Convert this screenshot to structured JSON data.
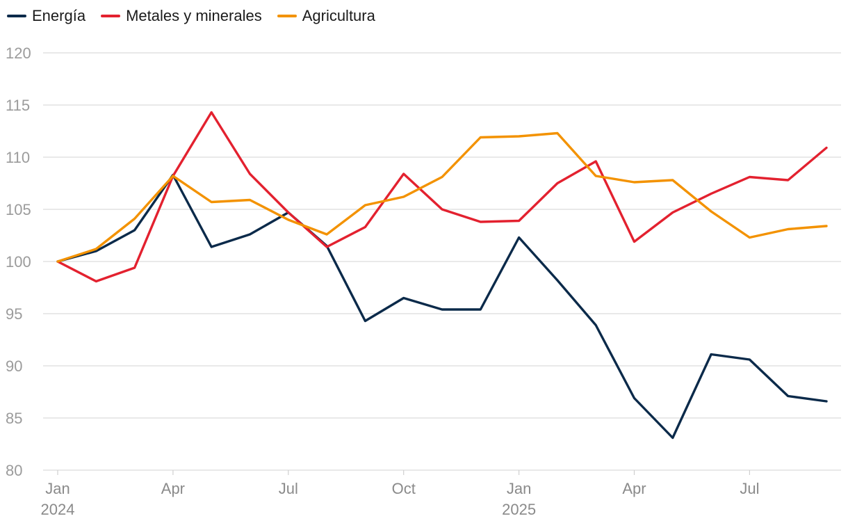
{
  "chart_data": {
    "type": "line",
    "title": "",
    "xlabel": "",
    "ylabel": "",
    "ylim": [
      80,
      120
    ],
    "yticks": [
      80,
      85,
      90,
      95,
      100,
      105,
      110,
      115,
      120
    ],
    "x": [
      "2024-01",
      "2024-02",
      "2024-03",
      "2024-04",
      "2024-05",
      "2024-06",
      "2024-07",
      "2024-08",
      "2024-09",
      "2024-10",
      "2024-11",
      "2024-12",
      "2025-01",
      "2025-02",
      "2025-03",
      "2025-04",
      "2025-05",
      "2025-06",
      "2025-07",
      "2025-08",
      "2025-09"
    ],
    "xticks": [
      {
        "index": 0,
        "label": "Jan",
        "year": "2024"
      },
      {
        "index": 3,
        "label": "Apr",
        "year": ""
      },
      {
        "index": 6,
        "label": "Jul",
        "year": ""
      },
      {
        "index": 9,
        "label": "Oct",
        "year": ""
      },
      {
        "index": 12,
        "label": "Jan",
        "year": "2025"
      },
      {
        "index": 15,
        "label": "Apr",
        "year": ""
      },
      {
        "index": 18,
        "label": "Jul",
        "year": ""
      }
    ],
    "legend_position": "top-left",
    "series": [
      {
        "name": "Energía",
        "color": "#0b2a4a",
        "values": [
          100,
          101,
          103,
          108.3,
          101.4,
          102.6,
          104.7,
          101.5,
          94.3,
          96.5,
          95.4,
          95.4,
          102.3,
          98.2,
          93.9,
          86.9,
          83.1,
          91.1,
          90.6,
          87.1,
          86.6
        ]
      },
      {
        "name": "Metales y minerales",
        "color": "#e3212f",
        "values": [
          100,
          98.1,
          99.4,
          108.2,
          114.3,
          108.4,
          104.7,
          101.4,
          103.3,
          108.4,
          105.0,
          103.8,
          103.9,
          107.5,
          109.6,
          101.9,
          104.7,
          106.5,
          108.1,
          107.8,
          110.9
        ]
      },
      {
        "name": "Agricultura",
        "color": "#f39200",
        "values": [
          100,
          101.2,
          104.1,
          108.2,
          105.7,
          105.9,
          104.0,
          102.6,
          105.4,
          106.2,
          108.1,
          111.9,
          112.0,
          112.3,
          108.2,
          107.6,
          107.8,
          104.8,
          102.3,
          103.1,
          103.4
        ]
      }
    ]
  }
}
